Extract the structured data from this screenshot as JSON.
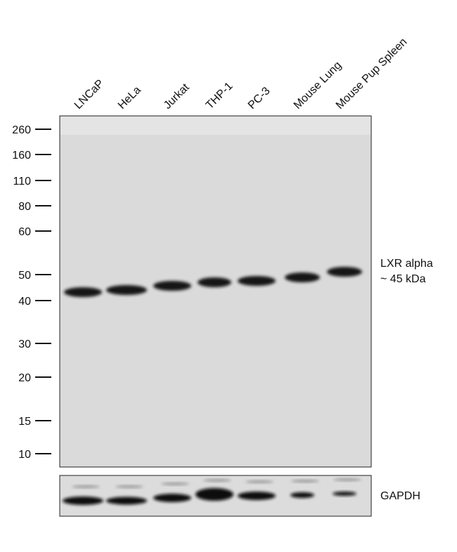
{
  "lanes": [
    "LNCaP",
    "HeLa",
    "Jurkat",
    "THP-1",
    "PC-3",
    "Mouse Lung",
    "Mouse Pup Spleen"
  ],
  "markers": [
    260,
    160,
    110,
    80,
    60,
    50,
    40,
    30,
    20,
    15,
    10
  ],
  "band_label": {
    "name": "LXR alpha",
    "size": "~ 45 kDa"
  },
  "loading_control": "GAPDH"
}
